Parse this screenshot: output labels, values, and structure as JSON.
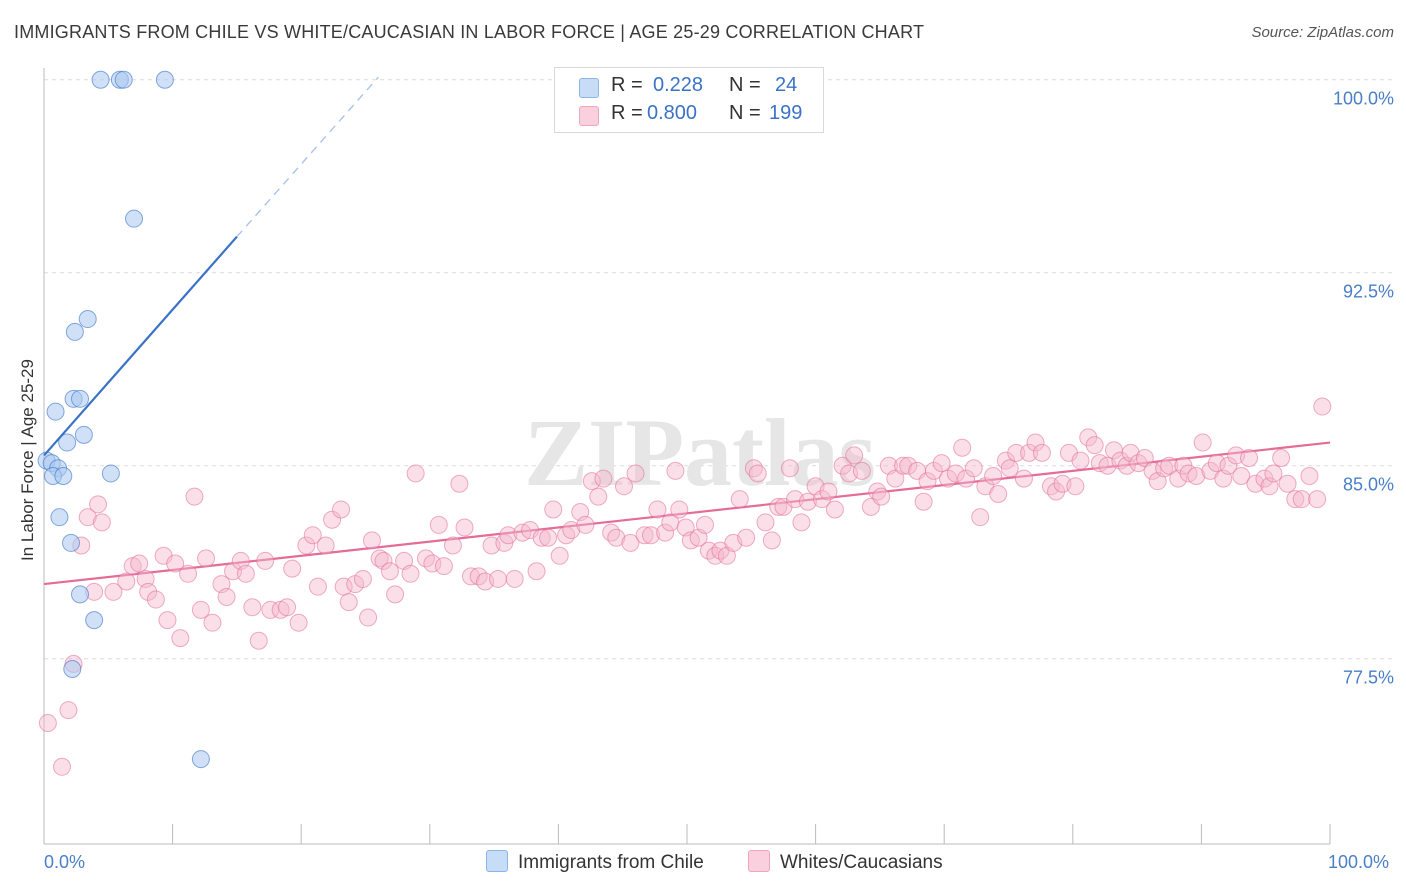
{
  "title": "IMMIGRANTS FROM CHILE VS WHITE/CAUCASIAN IN LABOR FORCE | AGE 25-29 CORRELATION CHART",
  "source": "Source: ZipAtlas.com",
  "watermark": "ZIPatlas",
  "legend": {
    "series1": {
      "r_label": "R =",
      "r_value": "0.228",
      "n_label": "N =",
      "n_value": "24"
    },
    "series2": {
      "r_label": "R =",
      "r_value": "0.800",
      "n_label": "N =",
      "n_value": "199"
    }
  },
  "chart_data": {
    "type": "scatter",
    "title": "IMMIGRANTS FROM CHILE VS WHITE/CAUCASIAN IN LABOR FORCE | AGE 25-29 CORRELATION CHART",
    "xlabel": "",
    "ylabel": "In Labor Force | Age 25-29",
    "xlim": [
      0,
      100
    ],
    "ylim": [
      70.3,
      100.3
    ],
    "x_tick_labels": [
      "0.0%",
      "100.0%"
    ],
    "y_ticks": [
      77.5,
      85.0,
      92.5,
      100.0
    ],
    "y_tick_labels": [
      "77.5%",
      "85.0%",
      "92.5%",
      "100.0%"
    ],
    "grid": true,
    "colors": {
      "series1": "#a9c8f0",
      "series1_line": "#3a73c6",
      "series2": "#f5b8cc",
      "series2_line": "#e46c97",
      "tick": "#4a7fc8"
    },
    "series": [
      {
        "name": "Immigrants from Chile",
        "trend": {
          "x0": 0,
          "y0": 85.4,
          "x1": 15,
          "y1": 93.9,
          "dashed_to_x": 26,
          "dashed_to_y": 100.1
        },
        "points": [
          [
            0.2,
            85.2
          ],
          [
            0.6,
            85.1
          ],
          [
            1.1,
            84.9
          ],
          [
            0.7,
            84.6
          ],
          [
            1.5,
            84.6
          ],
          [
            0.9,
            87.1
          ],
          [
            2.3,
            87.6
          ],
          [
            2.8,
            87.6
          ],
          [
            1.8,
            85.9
          ],
          [
            3.1,
            86.2
          ],
          [
            2.4,
            90.2
          ],
          [
            3.4,
            90.7
          ],
          [
            5.2,
            84.7
          ],
          [
            1.2,
            83.0
          ],
          [
            2.1,
            82.0
          ],
          [
            2.8,
            80.0
          ],
          [
            3.9,
            79.0
          ],
          [
            2.2,
            77.1
          ],
          [
            4.4,
            100.0
          ],
          [
            5.9,
            100.0
          ],
          [
            6.2,
            100.0
          ],
          [
            9.4,
            100.0
          ],
          [
            7.0,
            94.6
          ],
          [
            12.2,
            73.6
          ]
        ]
      },
      {
        "name": "Whites/Caucasians",
        "trend": {
          "x0": 0,
          "y0": 80.4,
          "x1": 100,
          "y1": 85.9
        },
        "points": [
          [
            0.3,
            75.0
          ],
          [
            1.4,
            73.3
          ],
          [
            1.9,
            75.5
          ],
          [
            2.3,
            77.3
          ],
          [
            2.9,
            81.9
          ],
          [
            3.4,
            83.0
          ],
          [
            3.9,
            80.1
          ],
          [
            4.2,
            83.5
          ],
          [
            4.5,
            82.8
          ],
          [
            5.4,
            80.1
          ],
          [
            6.4,
            80.5
          ],
          [
            6.9,
            81.1
          ],
          [
            7.4,
            81.2
          ],
          [
            7.9,
            80.6
          ],
          [
            8.1,
            80.1
          ],
          [
            8.7,
            79.8
          ],
          [
            9.3,
            81.5
          ],
          [
            9.6,
            79.0
          ],
          [
            10.2,
            81.2
          ],
          [
            10.6,
            78.3
          ],
          [
            11.2,
            80.8
          ],
          [
            11.7,
            83.8
          ],
          [
            12.2,
            79.4
          ],
          [
            12.6,
            81.4
          ],
          [
            13.1,
            78.9
          ],
          [
            13.8,
            80.4
          ],
          [
            14.2,
            79.9
          ],
          [
            14.7,
            80.9
          ],
          [
            15.3,
            81.3
          ],
          [
            15.7,
            80.8
          ],
          [
            16.2,
            79.5
          ],
          [
            16.7,
            78.2
          ],
          [
            17.2,
            81.3
          ],
          [
            17.6,
            79.4
          ],
          [
            18.4,
            79.4
          ],
          [
            18.9,
            79.5
          ],
          [
            19.3,
            81.0
          ],
          [
            19.8,
            78.9
          ],
          [
            20.4,
            81.9
          ],
          [
            20.9,
            82.3
          ],
          [
            21.3,
            80.3
          ],
          [
            21.9,
            81.9
          ],
          [
            22.4,
            82.9
          ],
          [
            23.1,
            83.3
          ],
          [
            23.3,
            80.3
          ],
          [
            23.7,
            79.7
          ],
          [
            24.2,
            80.4
          ],
          [
            24.8,
            80.6
          ],
          [
            25.2,
            79.1
          ],
          [
            25.5,
            82.1
          ],
          [
            26.1,
            81.4
          ],
          [
            26.4,
            81.3
          ],
          [
            26.9,
            80.9
          ],
          [
            27.3,
            80.0
          ],
          [
            28.0,
            81.3
          ],
          [
            28.5,
            80.8
          ],
          [
            28.9,
            84.7
          ],
          [
            29.7,
            81.4
          ],
          [
            30.2,
            81.2
          ],
          [
            30.7,
            82.7
          ],
          [
            31.1,
            81.1
          ],
          [
            31.8,
            81.9
          ],
          [
            32.3,
            84.3
          ],
          [
            32.7,
            82.6
          ],
          [
            33.2,
            80.7
          ],
          [
            33.8,
            80.7
          ],
          [
            34.3,
            80.5
          ],
          [
            34.8,
            81.9
          ],
          [
            35.3,
            80.6
          ],
          [
            35.8,
            82.0
          ],
          [
            36.1,
            82.3
          ],
          [
            36.6,
            80.6
          ],
          [
            37.2,
            82.4
          ],
          [
            37.8,
            82.5
          ],
          [
            38.3,
            80.9
          ],
          [
            38.7,
            82.2
          ],
          [
            39.2,
            82.2
          ],
          [
            39.6,
            83.3
          ],
          [
            40.1,
            81.5
          ],
          [
            40.6,
            82.3
          ],
          [
            41.0,
            82.5
          ],
          [
            41.7,
            83.2
          ],
          [
            42.1,
            82.7
          ],
          [
            42.6,
            84.4
          ],
          [
            43.1,
            83.8
          ],
          [
            43.5,
            84.5
          ],
          [
            44.1,
            82.4
          ],
          [
            44.5,
            82.2
          ],
          [
            45.1,
            84.2
          ],
          [
            45.6,
            82.0
          ],
          [
            46.0,
            84.7
          ],
          [
            46.7,
            82.3
          ],
          [
            47.2,
            82.3
          ],
          [
            47.7,
            83.3
          ],
          [
            48.3,
            82.4
          ],
          [
            48.7,
            82.8
          ],
          [
            49.1,
            84.8
          ],
          [
            49.4,
            83.3
          ],
          [
            49.9,
            82.6
          ],
          [
            50.3,
            82.1
          ],
          [
            50.9,
            82.2
          ],
          [
            51.4,
            82.7
          ],
          [
            51.7,
            81.7
          ],
          [
            52.2,
            81.5
          ],
          [
            52.6,
            81.7
          ],
          [
            53.1,
            81.5
          ],
          [
            53.6,
            82.0
          ],
          [
            54.1,
            83.7
          ],
          [
            54.6,
            82.2
          ],
          [
            55.2,
            84.9
          ],
          [
            55.5,
            84.7
          ],
          [
            56.1,
            82.8
          ],
          [
            56.6,
            82.1
          ],
          [
            57.1,
            83.4
          ],
          [
            57.5,
            83.4
          ],
          [
            58.0,
            84.9
          ],
          [
            58.4,
            83.7
          ],
          [
            58.9,
            82.8
          ],
          [
            59.4,
            83.6
          ],
          [
            60.0,
            84.2
          ],
          [
            60.5,
            83.7
          ],
          [
            61.0,
            84.0
          ],
          [
            61.5,
            83.3
          ],
          [
            62.1,
            85.0
          ],
          [
            62.6,
            84.7
          ],
          [
            63.0,
            85.4
          ],
          [
            63.6,
            84.8
          ],
          [
            64.3,
            83.4
          ],
          [
            64.8,
            84.0
          ],
          [
            65.1,
            83.8
          ],
          [
            65.7,
            85.0
          ],
          [
            66.2,
            84.5
          ],
          [
            66.8,
            85.0
          ],
          [
            67.2,
            85.0
          ],
          [
            67.9,
            84.8
          ],
          [
            68.4,
            83.6
          ],
          [
            68.7,
            84.4
          ],
          [
            69.2,
            84.8
          ],
          [
            69.8,
            85.1
          ],
          [
            70.3,
            84.5
          ],
          [
            70.9,
            84.7
          ],
          [
            71.4,
            85.7
          ],
          [
            71.7,
            84.5
          ],
          [
            72.3,
            84.9
          ],
          [
            72.8,
            83.0
          ],
          [
            73.2,
            84.2
          ],
          [
            73.8,
            84.6
          ],
          [
            74.2,
            83.9
          ],
          [
            74.8,
            85.2
          ],
          [
            75.1,
            84.9
          ],
          [
            75.6,
            85.5
          ],
          [
            76.2,
            84.5
          ],
          [
            76.6,
            85.5
          ],
          [
            77.1,
            85.9
          ],
          [
            77.6,
            85.5
          ],
          [
            78.3,
            84.2
          ],
          [
            78.7,
            84.0
          ],
          [
            79.2,
            84.3
          ],
          [
            79.7,
            85.5
          ],
          [
            80.2,
            84.2
          ],
          [
            80.6,
            85.2
          ],
          [
            81.2,
            86.1
          ],
          [
            81.7,
            85.8
          ],
          [
            82.1,
            85.1
          ],
          [
            82.7,
            85.0
          ],
          [
            83.2,
            85.6
          ],
          [
            83.7,
            85.2
          ],
          [
            84.2,
            85.0
          ],
          [
            84.5,
            85.5
          ],
          [
            85.1,
            85.1
          ],
          [
            85.6,
            85.3
          ],
          [
            86.2,
            84.8
          ],
          [
            86.6,
            84.4
          ],
          [
            87.1,
            84.9
          ],
          [
            87.5,
            85.0
          ],
          [
            88.2,
            84.5
          ],
          [
            88.6,
            85.0
          ],
          [
            89.0,
            84.7
          ],
          [
            89.6,
            84.6
          ],
          [
            90.1,
            85.9
          ],
          [
            90.7,
            84.8
          ],
          [
            91.2,
            85.1
          ],
          [
            91.7,
            84.5
          ],
          [
            92.1,
            85.0
          ],
          [
            92.7,
            85.4
          ],
          [
            93.1,
            84.6
          ],
          [
            93.7,
            85.3
          ],
          [
            94.2,
            84.3
          ],
          [
            94.9,
            84.5
          ],
          [
            95.3,
            84.2
          ],
          [
            95.6,
            84.7
          ],
          [
            96.2,
            85.3
          ],
          [
            96.7,
            84.3
          ],
          [
            97.3,
            83.7
          ],
          [
            97.8,
            83.7
          ],
          [
            98.4,
            84.6
          ],
          [
            99.0,
            83.7
          ],
          [
            99.4,
            87.3
          ]
        ]
      }
    ]
  }
}
